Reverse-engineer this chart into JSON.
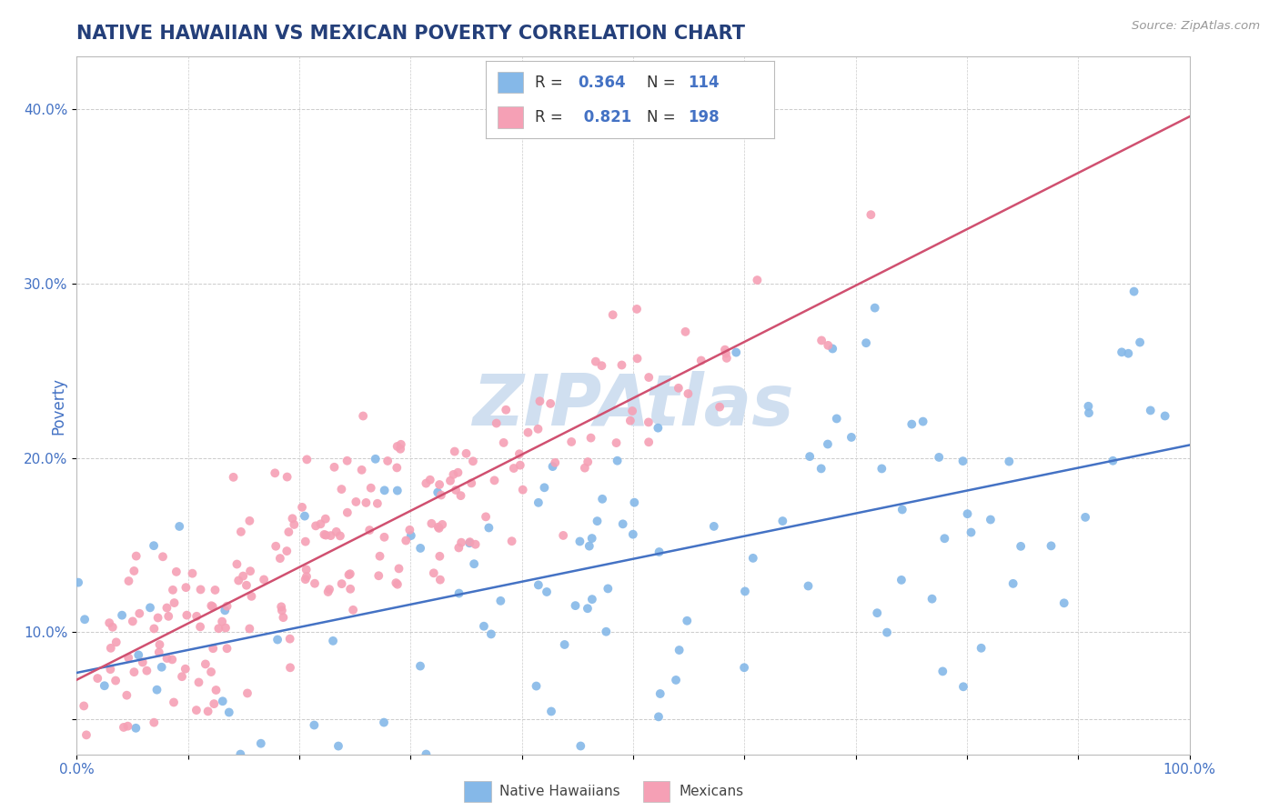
{
  "title": "NATIVE HAWAIIAN VS MEXICAN POVERTY CORRELATION CHART",
  "source": "Source: ZipAtlas.com",
  "ylabel": "Poverty",
  "x_min": 0.0,
  "x_max": 1.0,
  "y_min": 0.03,
  "y_max": 0.43,
  "x_ticks": [
    0.0,
    0.1,
    0.2,
    0.3,
    0.4,
    0.5,
    0.6,
    0.7,
    0.8,
    0.9,
    1.0
  ],
  "x_tick_labels": [
    "0.0%",
    "",
    "",
    "",
    "",
    "",
    "",
    "",
    "",
    "",
    "100.0%"
  ],
  "y_ticks": [
    0.05,
    0.1,
    0.2,
    0.3,
    0.4
  ],
  "y_tick_labels": [
    "",
    "10.0%",
    "20.0%",
    "30.0%",
    "40.0%"
  ],
  "blue_R": 0.364,
  "blue_N": 114,
  "pink_R": 0.821,
  "pink_N": 198,
  "blue_color": "#85B8E8",
  "pink_color": "#F5A0B5",
  "blue_line_color": "#4472C4",
  "pink_line_color": "#D05070",
  "title_color": "#243F7A",
  "axis_label_color": "#4472C4",
  "legend_value_color": "#4472C4",
  "watermark_color": "#D0DFF0",
  "background_color": "#FFFFFF",
  "grid_color": "#CCCCCC",
  "blue_seed": 7,
  "pink_seed": 13
}
